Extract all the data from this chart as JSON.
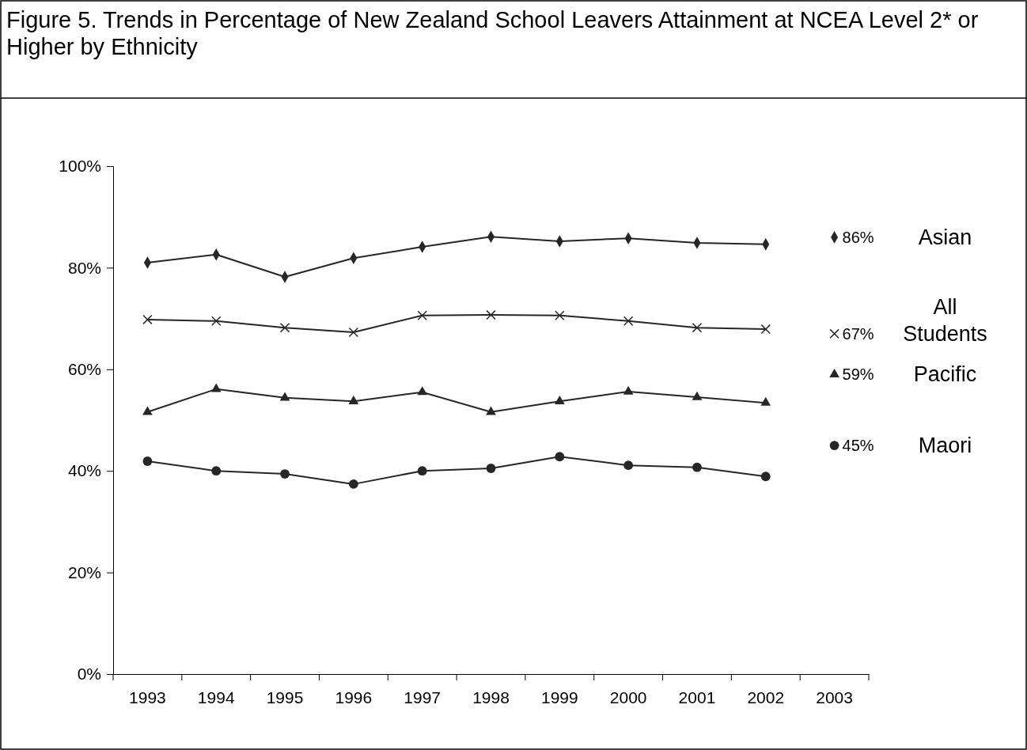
{
  "chart_data": {
    "type": "line",
    "title": "Figure 5. Trends in Percentage of New Zealand School Leavers Attainment at NCEA Level 2* or Higher by Ethnicity",
    "categories": [
      "1993",
      "1994",
      "1995",
      "1996",
      "1997",
      "1998",
      "1999",
      "2000",
      "2001",
      "2002",
      "2003"
    ],
    "ylim": [
      0,
      100
    ],
    "yticks": [
      {
        "value": 0,
        "label": "0%"
      },
      {
        "value": 20,
        "label": "20%"
      },
      {
        "value": 40,
        "label": "40%"
      },
      {
        "value": 60,
        "label": "60%"
      },
      {
        "value": 80,
        "label": "80%"
      },
      {
        "value": 100,
        "label": "100%"
      }
    ],
    "grid": false,
    "series": [
      {
        "marker": "diamond",
        "color": "#262626",
        "values": [
          81.0,
          82.6,
          78.2,
          81.9,
          84.1,
          86.1,
          85.2,
          85.8,
          84.9,
          84.6,
          null
        ]
      },
      {
        "marker": "cross",
        "color": "#262626",
        "values": [
          69.8,
          69.5,
          68.2,
          67.3,
          70.6,
          70.7,
          70.6,
          69.5,
          68.2,
          67.9,
          null
        ]
      },
      {
        "marker": "triangle",
        "color": "#262626",
        "values": [
          51.6,
          56.1,
          54.4,
          53.7,
          55.5,
          51.6,
          53.7,
          55.6,
          54.5,
          53.4,
          null
        ]
      },
      {
        "marker": "circle",
        "color": "#262626",
        "values": [
          41.9,
          40.0,
          39.4,
          37.4,
          40.0,
          40.5,
          42.8,
          41.1,
          40.7,
          38.9,
          null
        ]
      },
      {
        "type": "scatter",
        "name": "Asian",
        "marker": "diamond",
        "color": "#262626",
        "values": [
          null,
          null,
          null,
          null,
          null,
          null,
          null,
          null,
          null,
          null,
          86
        ],
        "value_labels": [
          null,
          null,
          null,
          null,
          null,
          null,
          null,
          null,
          null,
          null,
          "86%"
        ]
      },
      {
        "type": "scatter",
        "name": "All Students",
        "marker": "cross",
        "color": "#262626",
        "values": [
          null,
          null,
          null,
          null,
          null,
          null,
          null,
          null,
          null,
          null,
          67
        ],
        "value_labels": [
          null,
          null,
          null,
          null,
          null,
          null,
          null,
          null,
          null,
          null,
          "67%"
        ]
      },
      {
        "type": "scatter",
        "name": "Pacific",
        "marker": "triangle",
        "color": "#262626",
        "values": [
          null,
          null,
          null,
          null,
          null,
          null,
          null,
          null,
          null,
          null,
          59
        ],
        "value_labels": [
          null,
          null,
          null,
          null,
          null,
          null,
          null,
          null,
          null,
          null,
          "59%"
        ]
      },
      {
        "type": "scatter",
        "name": "Maori",
        "marker": "circle",
        "color": "#262626",
        "values": [
          null,
          null,
          null,
          null,
          null,
          null,
          null,
          null,
          null,
          null,
          45
        ],
        "value_labels": [
          null,
          null,
          null,
          null,
          null,
          null,
          null,
          null,
          null,
          null,
          "45%"
        ]
      }
    ]
  }
}
